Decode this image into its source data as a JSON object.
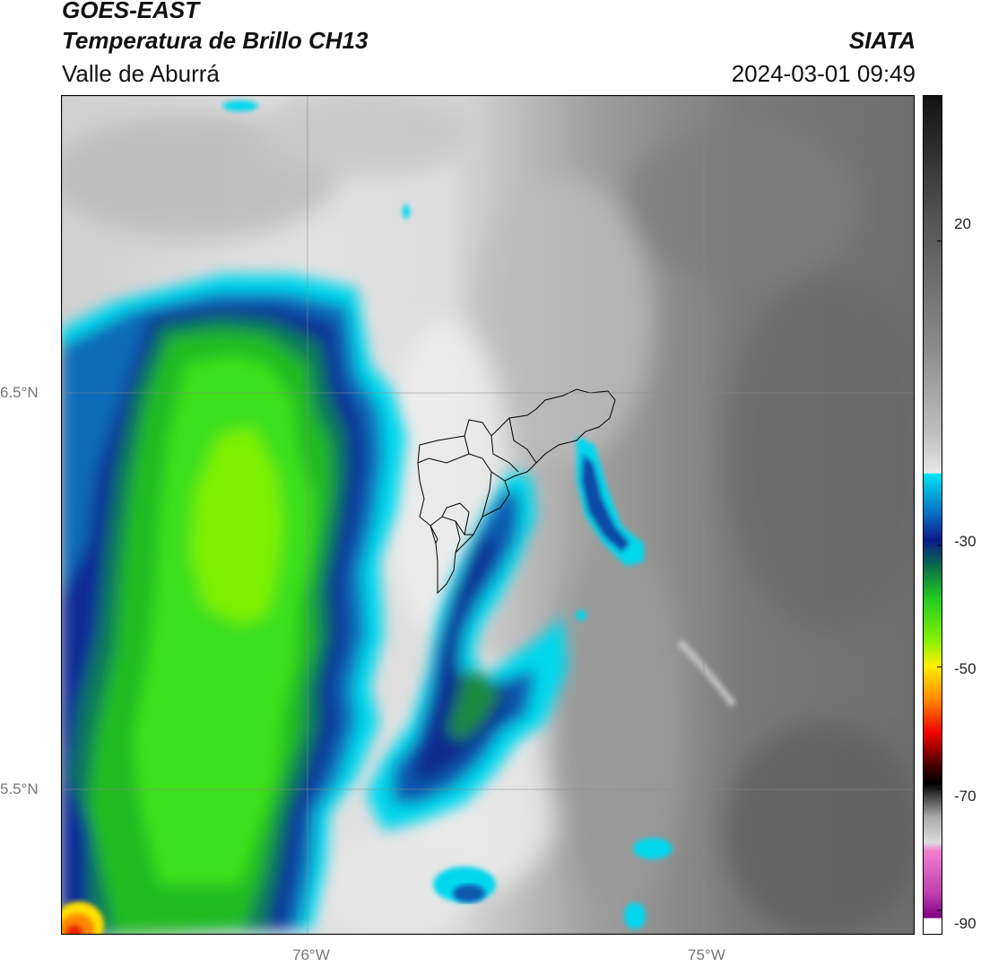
{
  "header": {
    "satellite": "GOES-EAST",
    "product": "Temperatura de Brillo CH13",
    "region": "Valle de Aburrá",
    "agency": "SIATA",
    "datetime": "2024-03-01 09:49"
  },
  "map": {
    "lat_labels": [
      "6.5°N",
      "5.5°N"
    ],
    "lon_labels": [
      "76°W",
      "75°W"
    ],
    "extent": {
      "lon_min": -76.62,
      "lon_max": -74.47,
      "lat_min": 5.13,
      "lat_max": 7.25
    },
    "gridlines": true
  },
  "colorbar": {
    "tick_labels": [
      "20",
      "-30",
      "-50",
      "-70",
      "-90"
    ],
    "tick_values": [
      20,
      -30,
      -50,
      -70,
      -90
    ],
    "range": [
      -94,
      44
    ],
    "colors": {
      "cyan": "#00e0f0",
      "blue": "#0a2a9a",
      "green": "#22cc22",
      "lime": "#88ff00",
      "yellow": "#ffe000",
      "orange": "#ff8000",
      "red": "#ee0000",
      "magenta": "#d040c0"
    }
  }
}
